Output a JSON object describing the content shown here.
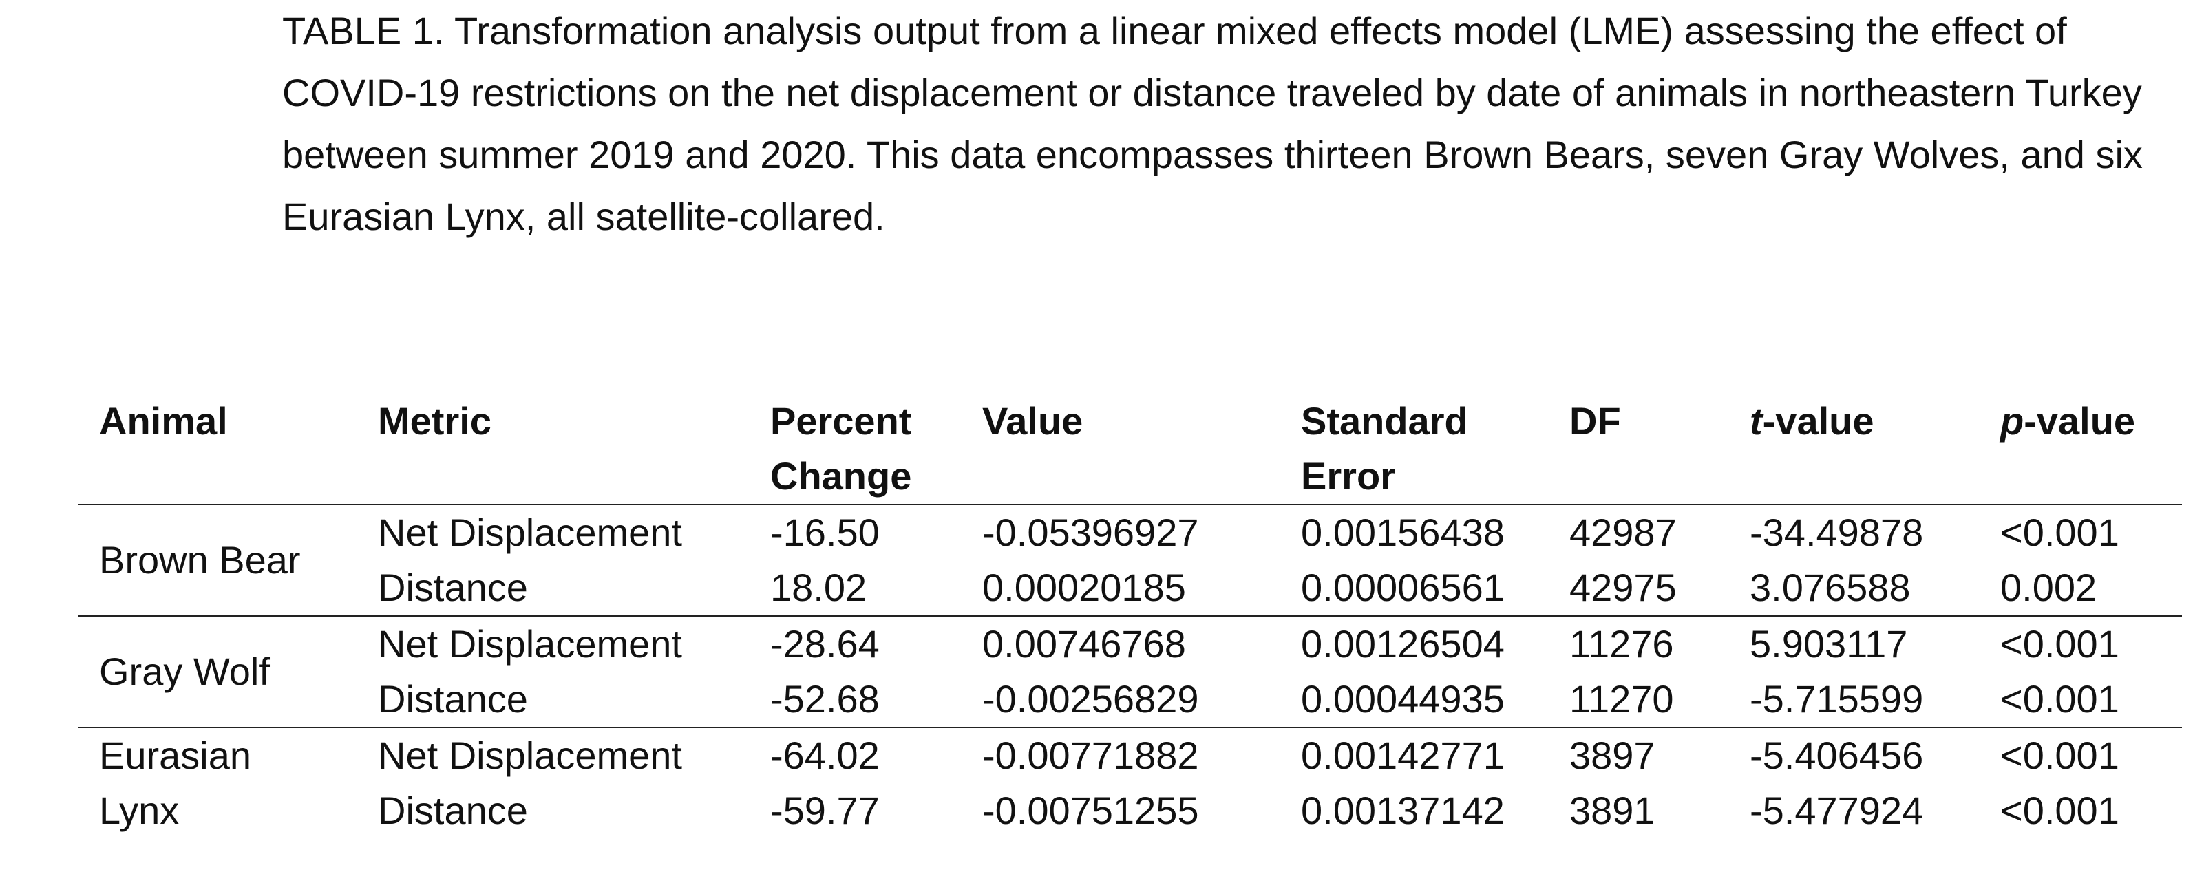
{
  "caption": "TABLE 1. Transformation analysis output from a linear mixed effects model (LME) assessing the effect of COVID-19 restrictions on the net displacement or distance traveled by date of animals in northeastern Turkey between summer 2019 and 2020. This data encompasses thirteen Brown Bears, seven Gray Wolves, and six Eurasian Lynx, all satellite-collared.",
  "table": {
    "headers": {
      "animal": "Animal",
      "metric": "Metric",
      "percent_line1": "Percent",
      "percent_line2": "Change",
      "value": "Value",
      "se_line1": "Standard",
      "se_line2": "Error",
      "df": "DF",
      "t_italic": "t",
      "t_rest": "-value",
      "p_italic": "p",
      "p_rest": "-value"
    },
    "groups": [
      {
        "animal_line1": "Brown Bear",
        "animal_line2": "",
        "rows": [
          {
            "metric": "Net Displacement",
            "percent": "-16.50",
            "value": "-0.05396927",
            "se": "0.00156438",
            "df": "42987",
            "t": "-34.49878",
            "p": "<0.001"
          },
          {
            "metric": "Distance",
            "percent": "18.02",
            "value": "0.00020185",
            "se": "0.00006561",
            "df": "42975",
            "t": "3.076588",
            "p": "0.002"
          }
        ]
      },
      {
        "animal_line1": "Gray Wolf",
        "animal_line2": "",
        "rows": [
          {
            "metric": "Net Displacement",
            "percent": "-28.64",
            "value": "0.00746768",
            "se": "0.00126504",
            "df": "11276",
            "t": "5.903117",
            "p": "<0.001"
          },
          {
            "metric": "Distance",
            "percent": "-52.68",
            "value": "-0.00256829",
            "se": "0.00044935",
            "df": "11270",
            "t": "-5.715599",
            "p": "<0.001"
          }
        ]
      },
      {
        "animal_line1": "Eurasian",
        "animal_line2": "Lynx",
        "rows": [
          {
            "metric": "Net Displacement",
            "percent": "-64.02",
            "value": "-0.00771882",
            "se": "0.00142771",
            "df": "3897",
            "t": "-5.406456",
            "p": "<0.001"
          },
          {
            "metric": "Distance",
            "percent": "-59.77",
            "value": "-0.00751255",
            "se": "0.00137142",
            "df": "3891",
            "t": "-5.477924",
            "p": "<0.001"
          }
        ]
      }
    ]
  }
}
